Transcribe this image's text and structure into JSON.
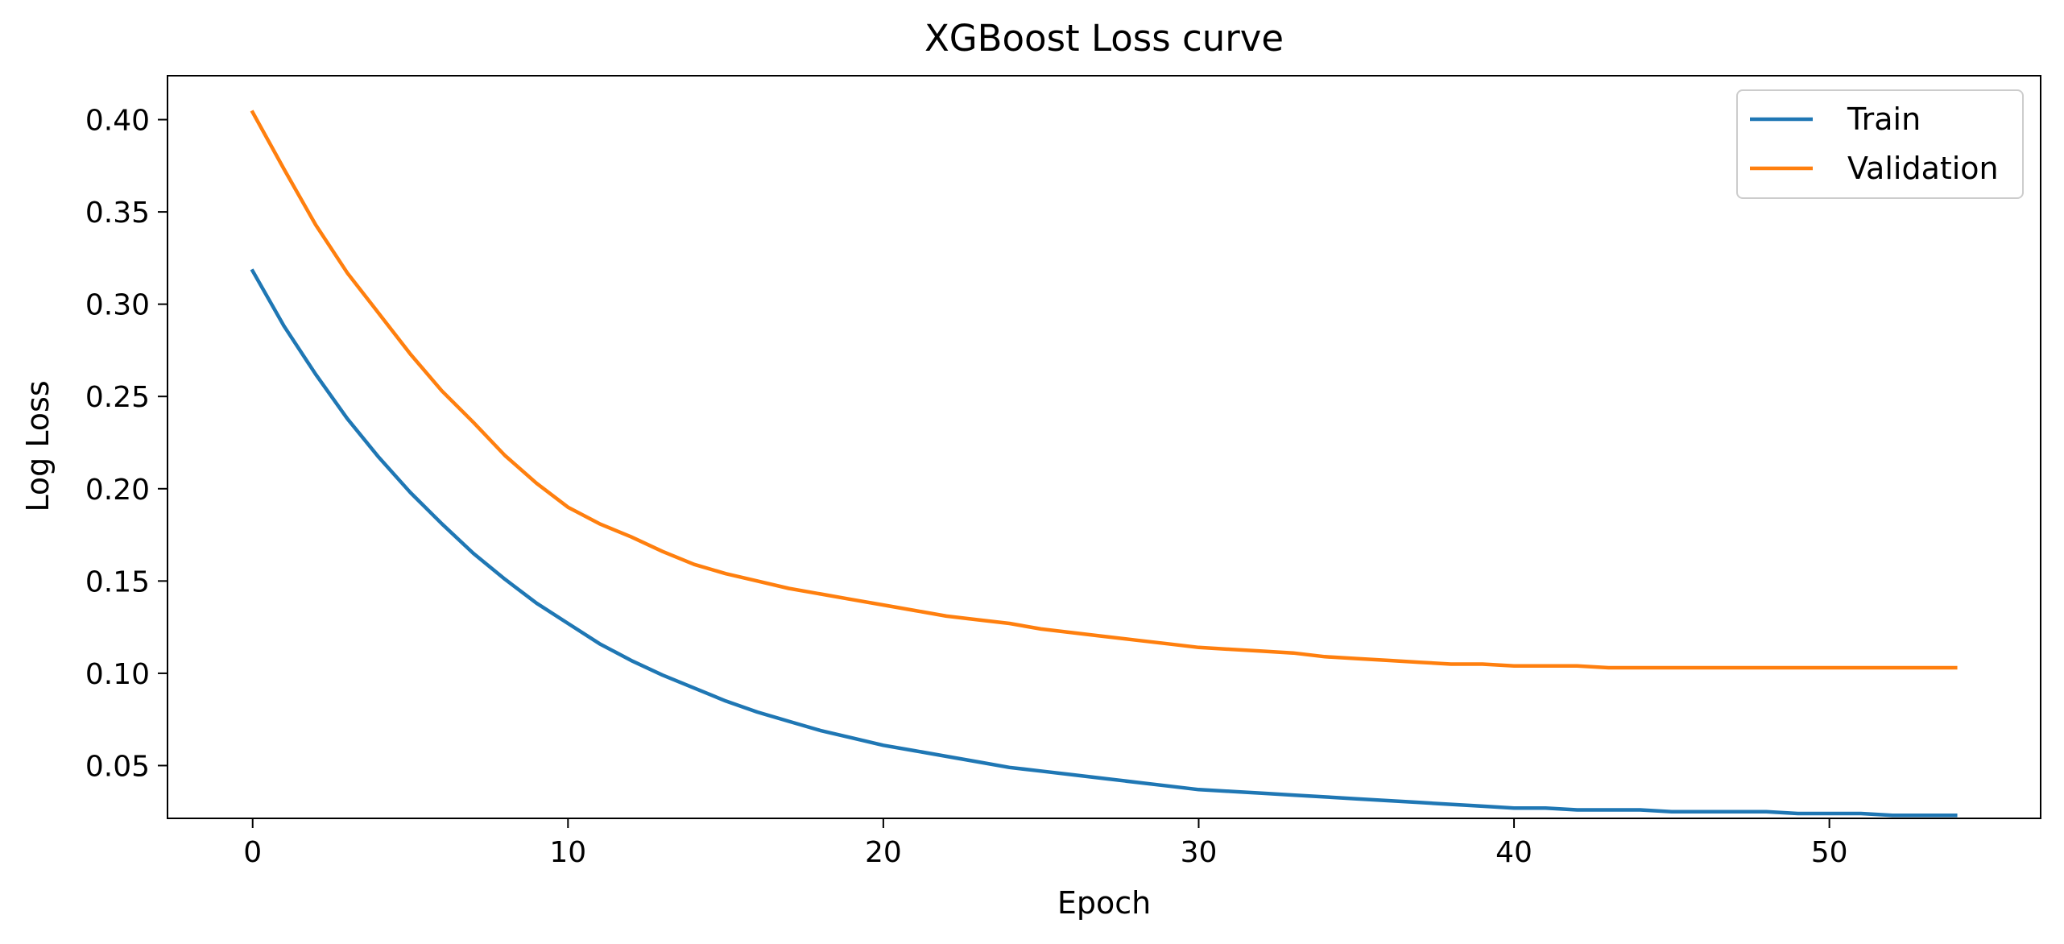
{
  "chart_data": {
    "type": "line",
    "title": "XGBoost Loss curve",
    "xlabel": "Epoch",
    "ylabel": "Log Loss",
    "xlim": [
      -2.7,
      56.7
    ],
    "ylim": [
      0.0214,
      0.4238
    ],
    "xticks": [
      0,
      10,
      20,
      30,
      40,
      50
    ],
    "yticks": [
      0.05,
      0.1,
      0.15,
      0.2,
      0.25,
      0.3,
      0.35,
      0.4
    ],
    "x": [
      0,
      1,
      2,
      3,
      4,
      5,
      6,
      7,
      8,
      9,
      10,
      11,
      12,
      13,
      14,
      15,
      16,
      17,
      18,
      19,
      20,
      21,
      22,
      23,
      24,
      25,
      26,
      27,
      28,
      29,
      30,
      31,
      32,
      33,
      34,
      35,
      36,
      37,
      38,
      39,
      40,
      41,
      42,
      43,
      44,
      45,
      46,
      47,
      48,
      49,
      50,
      51,
      52,
      53,
      54
    ],
    "series": [
      {
        "name": "Train",
        "color": "#1f77b4",
        "values": [
          0.318,
          0.288,
          0.262,
          0.238,
          0.217,
          0.198,
          0.181,
          0.165,
          0.151,
          0.138,
          0.127,
          0.116,
          0.107,
          0.099,
          0.092,
          0.085,
          0.079,
          0.074,
          0.069,
          0.065,
          0.061,
          0.058,
          0.055,
          0.052,
          0.049,
          0.047,
          0.045,
          0.043,
          0.041,
          0.039,
          0.037,
          0.036,
          0.035,
          0.034,
          0.033,
          0.032,
          0.031,
          0.03,
          0.029,
          0.028,
          0.027,
          0.027,
          0.026,
          0.026,
          0.026,
          0.025,
          0.025,
          0.025,
          0.025,
          0.024,
          0.024,
          0.024,
          0.023,
          0.023,
          0.023
        ]
      },
      {
        "name": "Validation",
        "color": "#ff7f0e",
        "values": [
          0.404,
          0.373,
          0.343,
          0.317,
          0.295,
          0.273,
          0.253,
          0.236,
          0.218,
          0.203,
          0.19,
          0.181,
          0.174,
          0.166,
          0.159,
          0.154,
          0.15,
          0.146,
          0.143,
          0.14,
          0.137,
          0.134,
          0.131,
          0.129,
          0.127,
          0.124,
          0.122,
          0.12,
          0.118,
          0.116,
          0.114,
          0.113,
          0.112,
          0.111,
          0.109,
          0.108,
          0.107,
          0.106,
          0.105,
          0.105,
          0.104,
          0.104,
          0.104,
          0.103,
          0.103,
          0.103,
          0.103,
          0.103,
          0.103,
          0.103,
          0.103,
          0.103,
          0.103,
          0.103,
          0.103
        ]
      }
    ],
    "legend": "top-right",
    "grid": false
  }
}
